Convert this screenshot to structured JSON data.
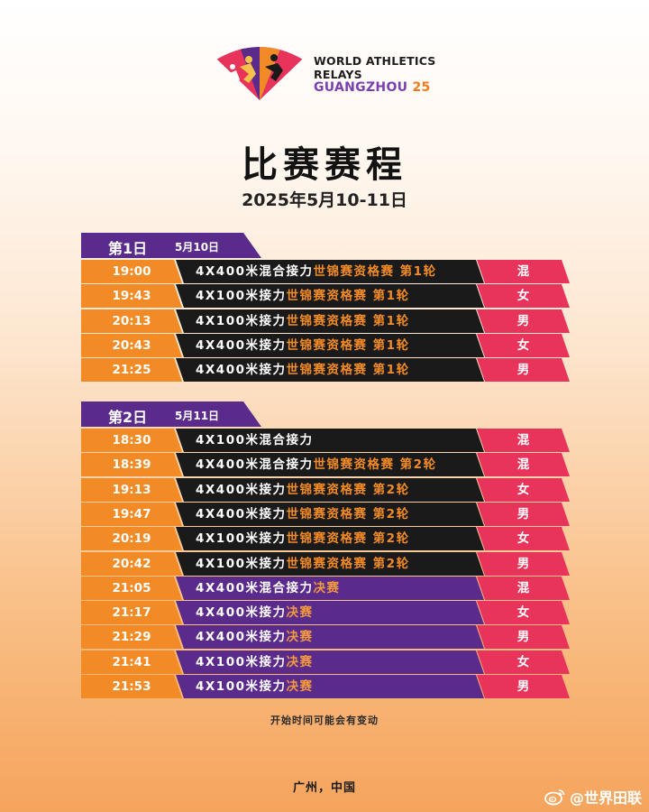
{
  "logo": {
    "line1": "WORLD ATHLETICS",
    "line2": "RELAYS",
    "line3": "GUANGZHOU",
    "line3_num": "25",
    "icon": "relay-fan-logo"
  },
  "title": "比赛赛程",
  "date": "2025年5月10-11日",
  "colors": {
    "time": "#f28b26",
    "event_black": "#1a1a1a",
    "event_purple": "#5b2b8c",
    "gender": "#e8335a"
  },
  "days": [
    {
      "label": "第1日",
      "date": "5月10日",
      "rows": [
        {
          "time": "19:00",
          "event": "4X400米混合接力",
          "qual": "世锦赛资格赛 第1轮",
          "gender": "混",
          "style": "black"
        },
        {
          "time": "19:43",
          "event": "4X100米接力",
          "qual": "世锦赛资格赛 第1轮",
          "gender": "女",
          "style": "black"
        },
        {
          "time": "20:13",
          "event": "4X100米接力",
          "qual": "世锦赛资格赛 第1轮",
          "gender": "男",
          "style": "black"
        },
        {
          "time": "20:43",
          "event": "4X400米接力",
          "qual": "世锦赛资格赛 第1轮",
          "gender": "女",
          "style": "black"
        },
        {
          "time": "21:25",
          "event": "4X400米接力",
          "qual": "世锦赛资格赛 第1轮",
          "gender": "男",
          "style": "black"
        }
      ]
    },
    {
      "label": "第2日",
      "date": "5月11日",
      "rows": [
        {
          "time": "18:30",
          "event": "4X100米混合接力",
          "qual": "",
          "gender": "混",
          "style": "black"
        },
        {
          "time": "18:39",
          "event": "4X400米混合接力",
          "qual": "世锦赛资格赛 第2轮",
          "gender": "混",
          "style": "black"
        },
        {
          "time": "19:13",
          "event": "4X400米接力",
          "qual": "世锦赛资格赛 第2轮",
          "gender": "女",
          "style": "black"
        },
        {
          "time": "19:47",
          "event": "4X400米接力",
          "qual": "世锦赛资格赛 第2轮",
          "gender": "男",
          "style": "black"
        },
        {
          "time": "20:19",
          "event": "4X100米接力",
          "qual": "世锦赛资格赛 第2轮",
          "gender": "女",
          "style": "black"
        },
        {
          "time": "20:42",
          "event": "4X100米接力",
          "qual": "世锦赛资格赛 第2轮",
          "gender": "男",
          "style": "black"
        },
        {
          "time": "21:05",
          "event": "4X400米混合接力",
          "qual": "决赛",
          "gender": "混",
          "style": "purple"
        },
        {
          "time": "21:17",
          "event": "4X400米接力",
          "qual": "决赛",
          "gender": "女",
          "style": "purple"
        },
        {
          "time": "21:29",
          "event": "4X400米接力",
          "qual": "决赛",
          "gender": "男",
          "style": "purple"
        },
        {
          "time": "21:41",
          "event": "4X100米接力",
          "qual": "决赛",
          "gender": "女",
          "style": "purple"
        },
        {
          "time": "21:53",
          "event": "4X100米接力",
          "qual": "决赛",
          "gender": "男",
          "style": "purple"
        }
      ]
    }
  ],
  "note": "开始时间可能会有变动",
  "location": "广州，中国",
  "watermark": {
    "text": "@世界田联",
    "icon": "weibo-icon"
  }
}
